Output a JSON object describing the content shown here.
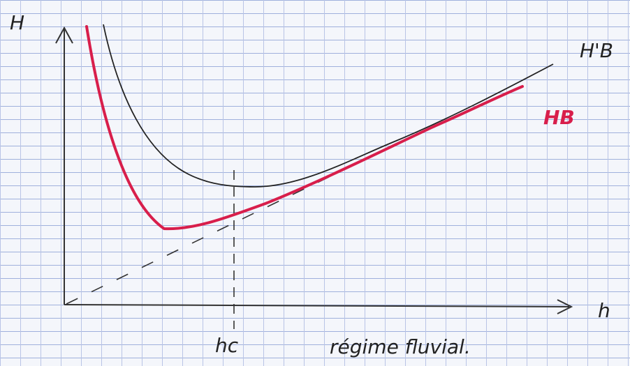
{
  "axes": {
    "y_label": "H",
    "x_label": "h"
  },
  "curves": [
    {
      "label": "H'B"
    },
    {
      "label": "HB"
    }
  ],
  "markers": [
    {
      "label": "hc"
    }
  ],
  "annotation": "régime fluvial."
}
